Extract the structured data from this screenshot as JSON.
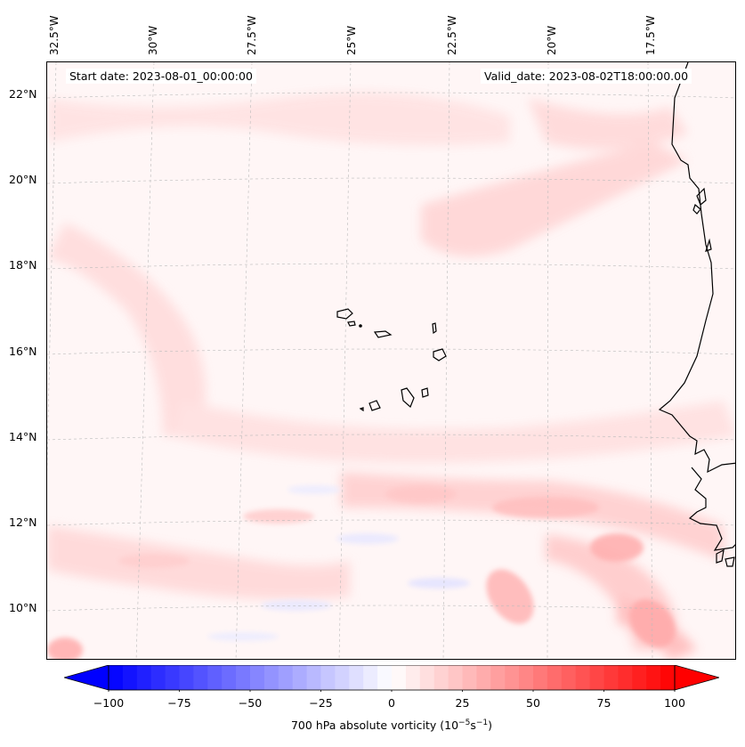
{
  "map": {
    "start_date": "Start date: 2023-08-01_00:00:00",
    "valid_date": "Valid_date: 2023-08-02T18:00:00.00",
    "longitude_labels": [
      "32.5°W",
      "30°W",
      "27.5°W",
      "25°W",
      "22.5°W",
      "20°W",
      "17.5°W"
    ],
    "latitude_labels": [
      "22°N",
      "20°N",
      "18°N",
      "16°N",
      "14°N",
      "12°N",
      "10°N"
    ],
    "field": "700 hPa absolute vorticity",
    "land_features": [
      "Cape Verde islands",
      "West African coastline"
    ]
  },
  "colorbar": {
    "ticks": [
      "−100",
      "−75",
      "−50",
      "−25",
      "0",
      "25",
      "50",
      "75",
      "100"
    ],
    "label_main": "700 hPa absolute vorticity (10",
    "label_exp1": "−5",
    "label_mid": "s",
    "label_exp2": "−1",
    "label_end": ")",
    "min": -100,
    "max": 100,
    "levels": 40,
    "colormap": "bwr"
  }
}
